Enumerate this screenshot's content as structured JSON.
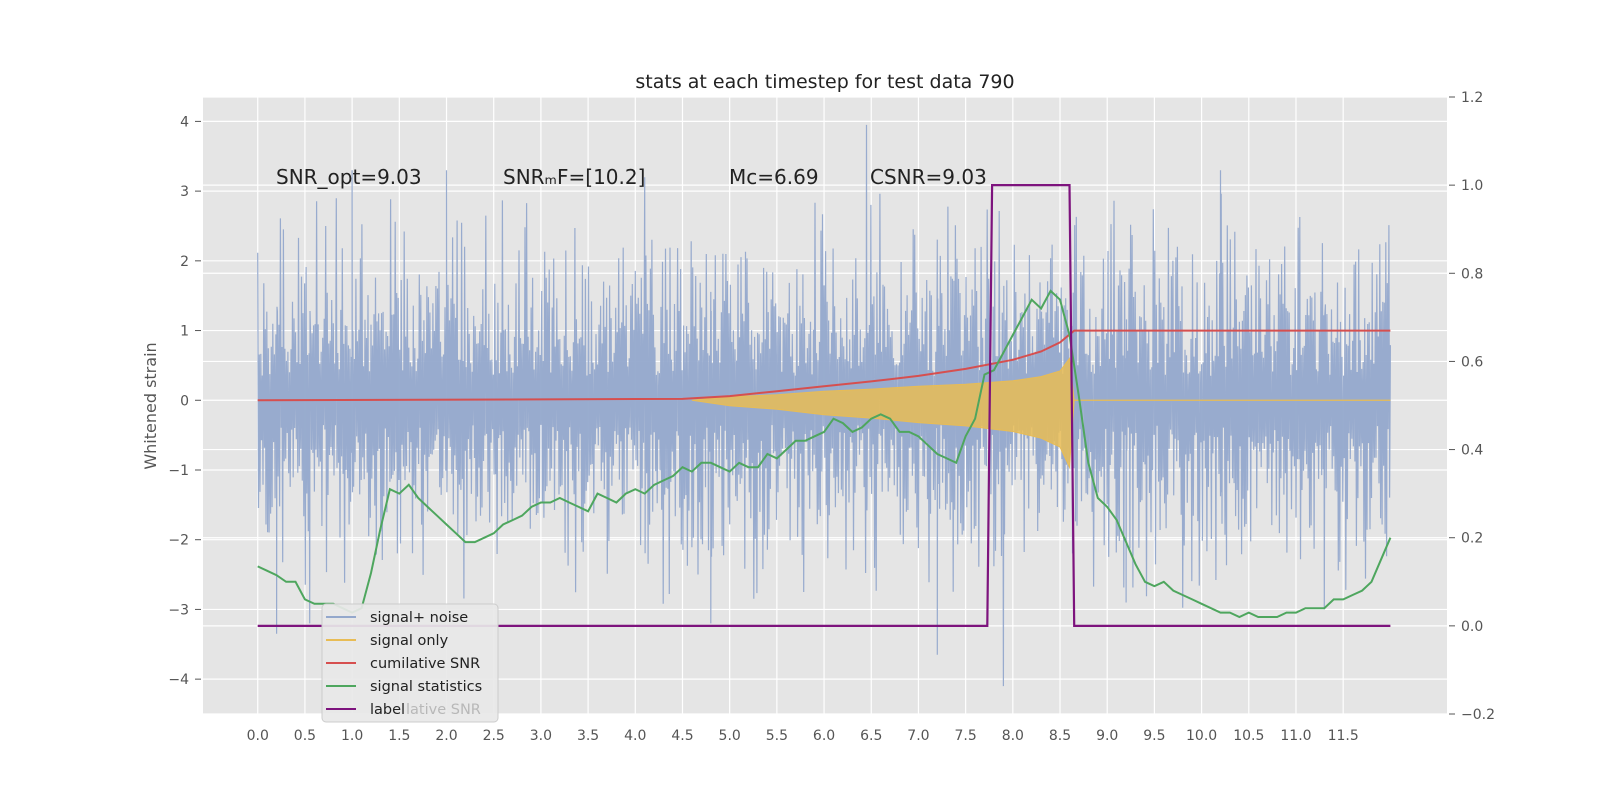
{
  "chart_data": {
    "type": "line",
    "title": "stats at each timestep for test data 790",
    "ylabel": "Whitened strain",
    "xlabel": "",
    "xlim": [
      -0.58,
      12.6
    ],
    "ylim": [
      -4.5,
      4.35
    ],
    "y2lim": [
      -0.2,
      1.2
    ],
    "grid": true,
    "x_ticks": [
      0.0,
      0.5,
      1.0,
      1.5,
      2.0,
      2.5,
      3.0,
      3.5,
      4.0,
      4.5,
      5.0,
      5.5,
      6.0,
      6.5,
      7.0,
      7.5,
      8.0,
      8.5,
      9.0,
      9.5,
      10.0,
      10.5,
      11.0,
      11.5
    ],
    "x_tick_labels": [
      "0.0",
      "0.5",
      "1.0",
      "1.5",
      "2.0",
      "2.5",
      "3.0",
      "3.5",
      "4.0",
      "4.5",
      "5.0",
      "5.5",
      "6.0",
      "6.5",
      "7.0",
      "7.5",
      "8.0",
      "8.5",
      "9.0",
      "9.5",
      "10.0",
      "10.5",
      "11.0",
      "11.5"
    ],
    "y_ticks": [
      4,
      3,
      2,
      1,
      0,
      -1,
      -2,
      -3,
      -4
    ],
    "y_tick_labels": [
      "4",
      "3",
      "2",
      "1",
      "0",
      "−1",
      "−2",
      "−3",
      "−4"
    ],
    "y2_ticks": [
      1.2,
      1.0,
      0.8,
      0.6,
      0.4,
      0.2,
      0.0,
      -0.2
    ],
    "y2_tick_labels": [
      "1.2",
      "1.0",
      "0.8",
      "0.6",
      "0.4",
      "0.2",
      "0.0",
      "−0.2"
    ],
    "annotations": [
      {
        "x": 0.2,
        "y": 3.1,
        "text": "SNR_opt=9.03"
      },
      {
        "x": 2.6,
        "y": 3.1,
        "text": "SNRₘF=[10.2]"
      },
      {
        "x": 5.0,
        "y": 3.1,
        "text": "Mᴄ=6.69"
      },
      {
        "x": 6.5,
        "y": 3.1,
        "text": "CSNR=9.03"
      }
    ],
    "legend": {
      "placement": "lower-left",
      "entries": [
        "signal+ noise",
        "signal only",
        "cumilative SNR",
        "signal statistics",
        "label"
      ],
      "ghost_text": "lative SNR"
    },
    "series": [
      {
        "name": "signal+ noise",
        "axis": "left",
        "color": "#94a8cc",
        "style": "noise-band",
        "x_range": [
          0.0,
          12.0
        ],
        "typical_range": [
          -1.9,
          2.0
        ],
        "spikes": [
          {
            "x": 0.2,
            "y": -3.35
          },
          {
            "x": 1.0,
            "y": 3.3
          },
          {
            "x": 2.0,
            "y": 3.3
          },
          {
            "x": 4.1,
            "y": 3.2
          },
          {
            "x": 4.8,
            "y": -3.2
          },
          {
            "x": 6.45,
            "y": 3.95
          },
          {
            "x": 7.2,
            "y": -3.65
          },
          {
            "x": 7.9,
            "y": -4.1
          },
          {
            "x": 10.2,
            "y": 3.3
          },
          {
            "x": 0.55,
            "y": -3.2
          },
          {
            "x": 11.3,
            "y": -3.0
          },
          {
            "x": 9.2,
            "y": -2.9
          }
        ]
      },
      {
        "name": "signal only",
        "axis": "left",
        "color": "#e8bc55",
        "style": "chirp",
        "x": [
          4.6,
          5.0,
          5.5,
          6.0,
          6.5,
          7.0,
          7.5,
          8.0,
          8.3,
          8.5,
          8.6,
          8.65
        ],
        "envelope": [
          0.0,
          0.05,
          0.08,
          0.13,
          0.16,
          0.2,
          0.23,
          0.28,
          0.34,
          0.42,
          0.6,
          0.0
        ]
      },
      {
        "name": "cumilative SNR",
        "axis": "left",
        "color": "#d64f4f",
        "x": [
          0.0,
          4.5,
          5.0,
          5.5,
          6.0,
          6.5,
          7.0,
          7.5,
          8.0,
          8.3,
          8.5,
          8.65,
          12.0
        ],
        "values": [
          0.0,
          0.02,
          0.06,
          0.13,
          0.2,
          0.27,
          0.35,
          0.45,
          0.58,
          0.7,
          0.83,
          1.0,
          1.0
        ]
      },
      {
        "name": "signal statistics",
        "axis": "right",
        "color": "#4ea65e",
        "x": [
          0.0,
          0.1,
          0.2,
          0.3,
          0.4,
          0.5,
          0.6,
          0.7,
          0.8,
          0.9,
          1.0,
          1.1,
          1.2,
          1.3,
          1.4,
          1.5,
          1.6,
          1.7,
          1.8,
          1.9,
          2.0,
          2.1,
          2.2,
          2.3,
          2.4,
          2.5,
          2.6,
          2.7,
          2.8,
          2.9,
          3.0,
          3.1,
          3.2,
          3.3,
          3.4,
          3.5,
          3.6,
          3.7,
          3.8,
          3.9,
          4.0,
          4.1,
          4.2,
          4.3,
          4.4,
          4.5,
          4.6,
          4.7,
          4.8,
          4.9,
          5.0,
          5.1,
          5.2,
          5.3,
          5.4,
          5.5,
          5.6,
          5.7,
          5.8,
          5.9,
          6.0,
          6.1,
          6.2,
          6.3,
          6.4,
          6.5,
          6.6,
          6.7,
          6.8,
          6.9,
          7.0,
          7.1,
          7.2,
          7.3,
          7.4,
          7.5,
          7.6,
          7.7,
          7.8,
          7.9,
          8.0,
          8.1,
          8.2,
          8.3,
          8.4,
          8.5,
          8.55,
          8.6,
          8.7,
          8.8,
          8.9,
          9.0,
          9.1,
          9.2,
          9.3,
          9.4,
          9.5,
          9.6,
          9.7,
          9.8,
          9.9,
          10.0,
          10.1,
          10.2,
          10.3,
          10.4,
          10.5,
          10.6,
          10.7,
          10.8,
          10.9,
          11.0,
          11.1,
          11.2,
          11.3,
          11.4,
          11.5,
          11.6,
          11.7,
          11.8,
          11.9,
          12.0
        ],
        "values": [
          0.135,
          0.125,
          0.115,
          0.1,
          0.1,
          0.06,
          0.05,
          0.05,
          0.05,
          0.04,
          0.03,
          0.04,
          0.12,
          0.22,
          0.31,
          0.3,
          0.32,
          0.29,
          0.27,
          0.25,
          0.23,
          0.21,
          0.19,
          0.19,
          0.2,
          0.21,
          0.23,
          0.24,
          0.25,
          0.27,
          0.28,
          0.28,
          0.29,
          0.28,
          0.27,
          0.26,
          0.3,
          0.29,
          0.28,
          0.3,
          0.31,
          0.3,
          0.32,
          0.33,
          0.34,
          0.36,
          0.35,
          0.37,
          0.37,
          0.36,
          0.35,
          0.37,
          0.36,
          0.36,
          0.39,
          0.38,
          0.4,
          0.42,
          0.42,
          0.43,
          0.44,
          0.47,
          0.46,
          0.44,
          0.45,
          0.47,
          0.48,
          0.47,
          0.44,
          0.44,
          0.43,
          0.41,
          0.39,
          0.38,
          0.37,
          0.43,
          0.47,
          0.57,
          0.58,
          0.62,
          0.66,
          0.7,
          0.74,
          0.72,
          0.76,
          0.74,
          0.7,
          0.66,
          0.52,
          0.37,
          0.29,
          0.27,
          0.24,
          0.19,
          0.14,
          0.1,
          0.09,
          0.1,
          0.08,
          0.07,
          0.06,
          0.05,
          0.04,
          0.03,
          0.03,
          0.02,
          0.03,
          0.02,
          0.02,
          0.02,
          0.03,
          0.03,
          0.04,
          0.04,
          0.04,
          0.06,
          0.06,
          0.07,
          0.08,
          0.1,
          0.15,
          0.2
        ]
      },
      {
        "name": "label",
        "axis": "right",
        "color": "#7d137d",
        "x": [
          0.0,
          7.73,
          7.78,
          8.6,
          8.65,
          12.0
        ],
        "values": [
          0.0,
          0.0,
          1.0,
          1.0,
          0.0,
          0.0
        ]
      }
    ]
  }
}
